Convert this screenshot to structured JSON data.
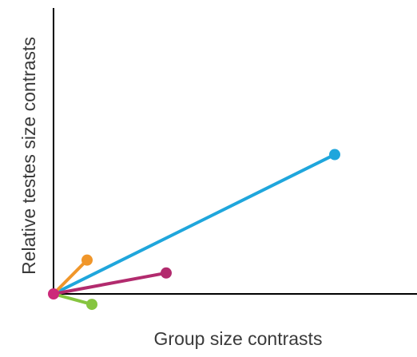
{
  "chart_data": {
    "type": "line",
    "title": "",
    "xlabel": "Group size contrasts",
    "ylabel": "Relative testes size contrasts",
    "xlim": [
      0,
      455
    ],
    "ylim": [
      -20,
      355
    ],
    "grid": false,
    "legend": "none",
    "origin": {
      "x": 0,
      "y": 0,
      "color": "#cc2a7a"
    },
    "series": [
      {
        "x": [
          0,
          352
        ],
        "y": [
          0,
          173
        ],
        "color": "#1fa6dc"
      },
      {
        "x": [
          0,
          42
        ],
        "y": [
          0,
          42
        ],
        "color": "#f0962a"
      },
      {
        "x": [
          0,
          141
        ],
        "y": [
          0,
          26
        ],
        "color": "#b22b6e"
      },
      {
        "x": [
          0,
          48
        ],
        "y": [
          0,
          -13
        ],
        "color": "#86c540"
      }
    ]
  }
}
